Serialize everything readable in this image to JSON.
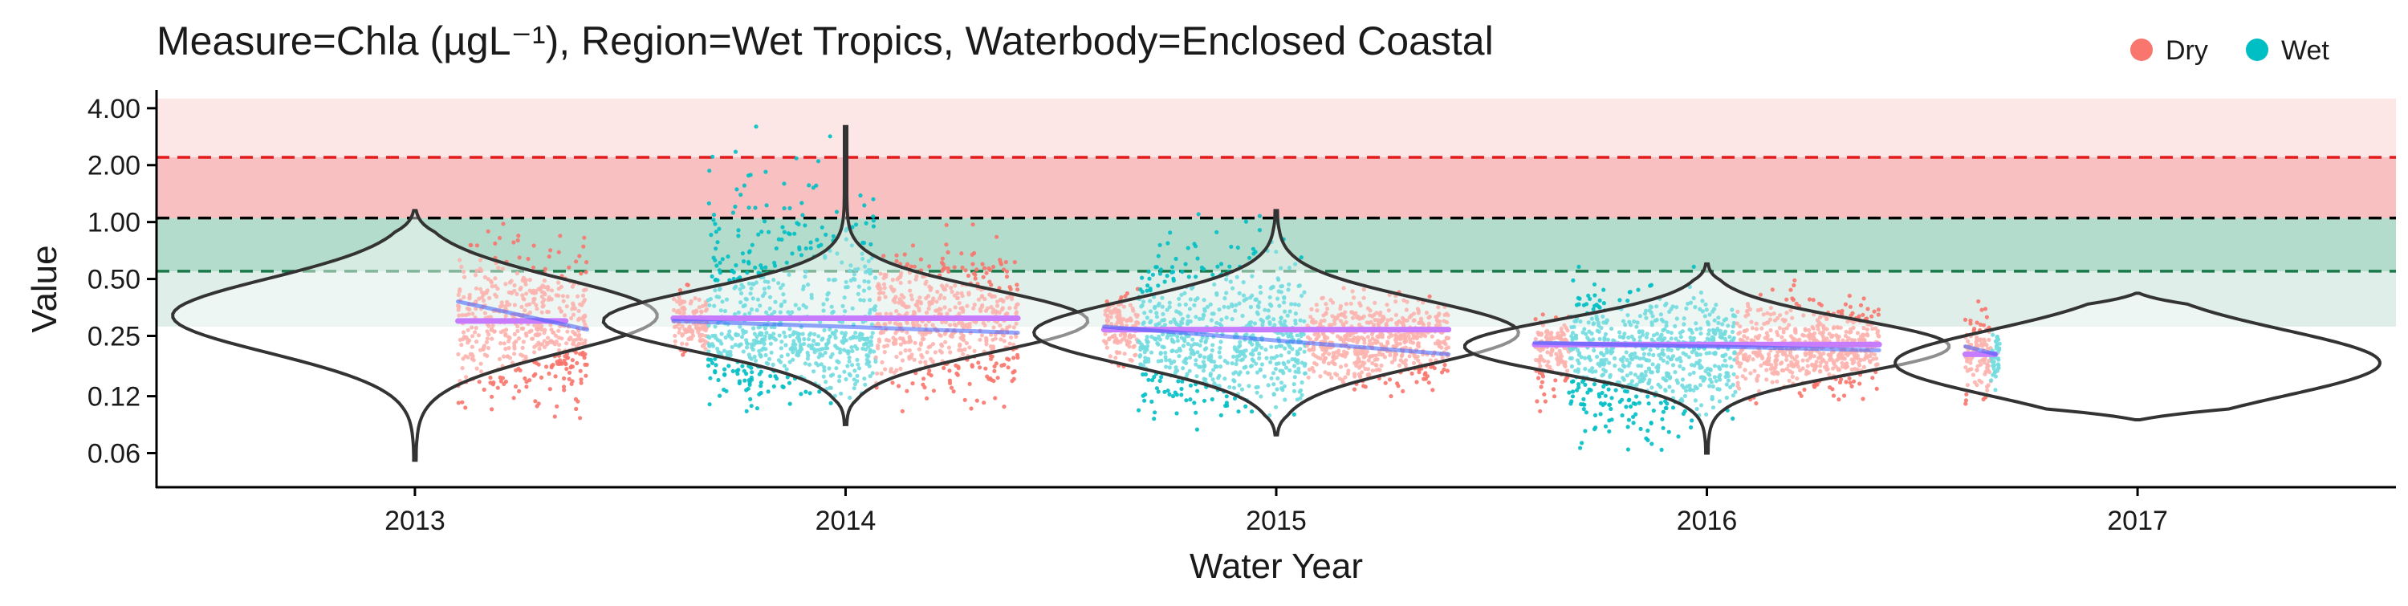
{
  "chart_data": {
    "type": "scatter",
    "title": "Measure=Chla (µgL⁻¹), Region=Wet Tropics, Waterbody=Enclosed Coastal",
    "xlabel": "Water Year",
    "ylabel": "Value",
    "y_scale": "log2",
    "ylim": [
      0.04,
      5.0
    ],
    "xlim": [
      2012.4,
      2017.6
    ],
    "x_ticks": [
      2013,
      2014,
      2015,
      2016,
      2017
    ],
    "x_tick_labels": [
      "2013",
      "2014",
      "2015",
      "2016",
      "2017"
    ],
    "y_ticks": [
      0.06,
      0.12,
      0.25,
      0.5,
      1.0,
      2.0,
      4.0
    ],
    "y_tick_labels": [
      "0.06",
      "0.12",
      "0.25",
      "0.50",
      "1.00",
      "2.00",
      "4.00"
    ],
    "legend": {
      "position": "top-right",
      "entries": [
        {
          "label": "Dry",
          "color": "#F8766D"
        },
        {
          "label": "Wet",
          "color": "#00BFC4"
        }
      ]
    },
    "bands": [
      {
        "from": 0.28,
        "to": 1.05,
        "color": "#dfeee8",
        "note": "pale green band"
      },
      {
        "from": 0.55,
        "to": 1.05,
        "color": "#b4dccc",
        "note": "darker green band"
      },
      {
        "from": 1.05,
        "to": 2.2,
        "color": "#f8c0c0",
        "note": "red band"
      },
      {
        "from": 2.2,
        "to": 4.5,
        "color": "#fce6e6",
        "note": "pale red band"
      }
    ],
    "reference_lines": [
      {
        "value": 2.2,
        "color": "#e41a1c",
        "dash": "dashed"
      },
      {
        "value": 1.05,
        "color": "#000000",
        "dash": "dashed"
      },
      {
        "value": 0.55,
        "color": "#1b7a4a",
        "dash": "dashed"
      }
    ],
    "violins": [
      {
        "year": 2013,
        "min": 0.055,
        "max": 1.15,
        "mode": 0.32,
        "spread": 0.45
      },
      {
        "year": 2014,
        "min": 0.085,
        "max": 3.2,
        "mode": 0.3,
        "spread": 0.38
      },
      {
        "year": 2015,
        "min": 0.075,
        "max": 1.15,
        "mode": 0.26,
        "spread": 0.4
      },
      {
        "year": 2016,
        "min": 0.06,
        "max": 0.6,
        "mode": 0.22,
        "spread": 0.33
      },
      {
        "year": 2017,
        "min": 0.09,
        "max": 0.42,
        "mode": 0.18,
        "spread": 0.4
      }
    ],
    "point_clouds": [
      {
        "season": "Dry",
        "x_start": 2013.1,
        "x_end": 2013.4,
        "median": 0.28,
        "low": 0.09,
        "high": 1.1
      },
      {
        "season": "Dry",
        "x_start": 2013.6,
        "x_end": 2013.68,
        "median": 0.3,
        "low": 0.18,
        "high": 0.5
      },
      {
        "season": "Wet",
        "x_start": 2013.68,
        "x_end": 2014.07,
        "median": 0.26,
        "low": 0.1,
        "high": 3.2
      },
      {
        "season": "Dry",
        "x_start": 2014.07,
        "x_end": 2014.4,
        "median": 0.3,
        "low": 0.1,
        "high": 1.0
      },
      {
        "season": "Dry",
        "x_start": 2014.6,
        "x_end": 2014.68,
        "median": 0.28,
        "low": 0.16,
        "high": 0.5
      },
      {
        "season": "Wet",
        "x_start": 2014.68,
        "x_end": 2015.07,
        "median": 0.24,
        "low": 0.08,
        "high": 1.1
      },
      {
        "season": "Dry",
        "x_start": 2015.07,
        "x_end": 2015.4,
        "median": 0.24,
        "low": 0.12,
        "high": 0.5
      },
      {
        "season": "Dry",
        "x_start": 2015.6,
        "x_end": 2015.68,
        "median": 0.22,
        "low": 0.1,
        "high": 0.35
      },
      {
        "season": "Wet",
        "x_start": 2015.68,
        "x_end": 2016.07,
        "median": 0.2,
        "low": 0.06,
        "high": 0.58
      },
      {
        "season": "Dry",
        "x_start": 2016.07,
        "x_end": 2016.4,
        "median": 0.22,
        "low": 0.11,
        "high": 0.5
      },
      {
        "season": "Dry",
        "x_start": 2016.6,
        "x_end": 2016.66,
        "median": 0.2,
        "low": 0.1,
        "high": 0.4
      },
      {
        "season": "Wet",
        "x_start": 2016.66,
        "x_end": 2016.68,
        "median": 0.2,
        "low": 0.12,
        "high": 0.32
      }
    ],
    "median_lines": [
      {
        "x_start": 2013.1,
        "x_end": 2013.35,
        "value": 0.3
      },
      {
        "x_start": 2013.6,
        "x_end": 2014.4,
        "value": 0.31
      },
      {
        "x_start": 2014.6,
        "x_end": 2015.4,
        "value": 0.27
      },
      {
        "x_start": 2015.6,
        "x_end": 2016.4,
        "value": 0.225
      },
      {
        "x_start": 2016.6,
        "x_end": 2016.67,
        "value": 0.2
      }
    ],
    "trend_lines": [
      {
        "x_start": 2013.1,
        "x_end": 2013.4,
        "start": 0.38,
        "end": 0.27
      },
      {
        "x_start": 2013.6,
        "x_end": 2014.4,
        "start": 0.3,
        "end": 0.26
      },
      {
        "x_start": 2014.6,
        "x_end": 2015.4,
        "start": 0.28,
        "end": 0.2
      },
      {
        "x_start": 2015.6,
        "x_end": 2016.4,
        "start": 0.23,
        "end": 0.21
      },
      {
        "x_start": 2016.6,
        "x_end": 2016.67,
        "start": 0.22,
        "end": 0.2
      }
    ]
  }
}
